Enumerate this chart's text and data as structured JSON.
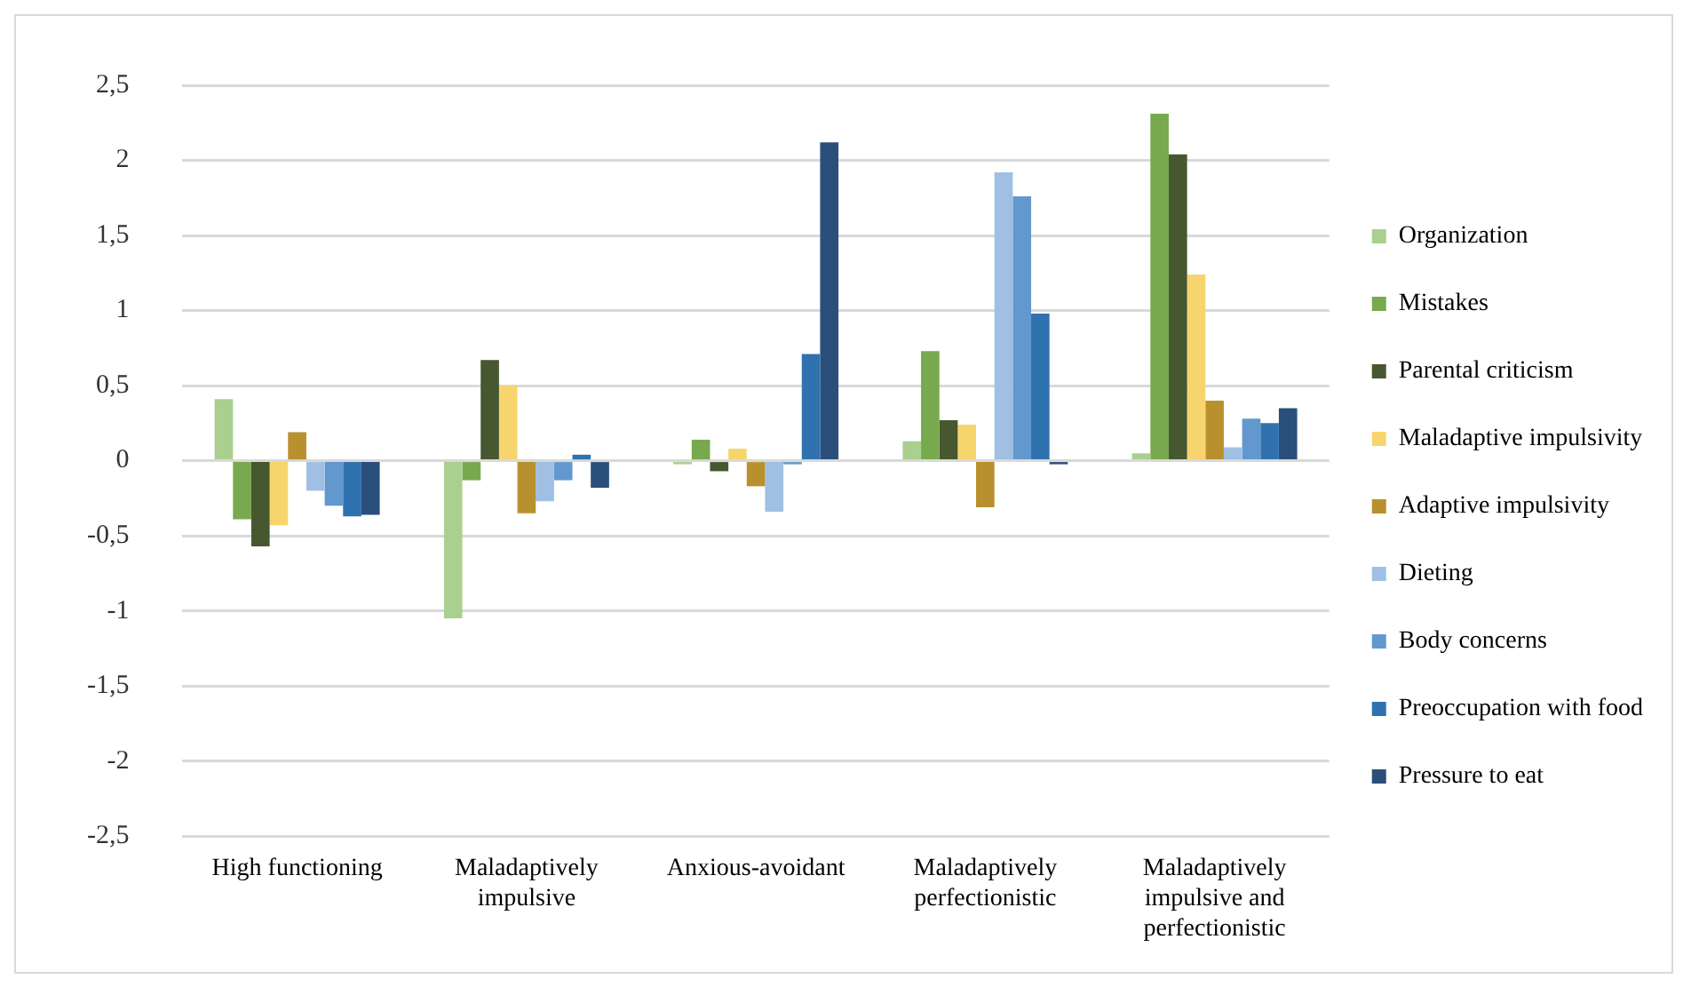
{
  "chart_data": {
    "type": "bar",
    "categories": [
      "High functioning",
      "Maladaptively impulsive",
      "Anxious-avoidant",
      "Maladaptively perfectionistic",
      "Maladaptively impulsive and perfectionistic"
    ],
    "series": [
      {
        "name": "Organization",
        "color": "#a9d08e",
        "values": [
          0.41,
          -1.05,
          -0.02,
          0.13,
          0.05
        ]
      },
      {
        "name": "Mistakes",
        "color": "#78a94e",
        "values": [
          -0.39,
          -0.13,
          0.14,
          0.73,
          2.31
        ]
      },
      {
        "name": "Parental criticism",
        "color": "#475730",
        "values": [
          -0.57,
          0.67,
          -0.07,
          0.27,
          2.04
        ]
      },
      {
        "name": "Maladaptive impulsivity",
        "color": "#f7d56e",
        "values": [
          -0.43,
          0.5,
          0.08,
          0.24,
          1.24
        ]
      },
      {
        "name": "Adaptive impulsivity",
        "color": "#b8902e",
        "values": [
          0.19,
          -0.35,
          -0.17,
          -0.31,
          0.4
        ]
      },
      {
        "name": "Dieting",
        "color": "#9fc0e3",
        "values": [
          -0.2,
          -0.27,
          -0.34,
          1.92,
          0.09
        ]
      },
      {
        "name": "Body concerns",
        "color": "#6298cd",
        "values": [
          -0.3,
          -0.13,
          -0.01,
          1.76,
          0.28
        ]
      },
      {
        "name": "Preoccupation with food",
        "color": "#3072b0",
        "values": [
          -0.37,
          0.04,
          0.71,
          0.98,
          0.25
        ]
      },
      {
        "name": "Pressure to eat",
        "color": "#2a4f7a",
        "values": [
          -0.36,
          -0.18,
          2.12,
          -0.02,
          0.35
        ]
      }
    ],
    "ylim": [
      -2.5,
      2.5
    ],
    "yticks": [
      {
        "value": -2.5,
        "label": "-2,5"
      },
      -2,
      {
        "value": -1.5,
        "label": "-1,5"
      },
      -1,
      {
        "value": -0.5,
        "label": "-0,5"
      },
      0,
      {
        "value": 0.5,
        "label": "0,5"
      },
      1,
      {
        "value": 1.5,
        "label": "1,5"
      },
      2,
      {
        "value": 2.5,
        "label": "2,5"
      }
    ],
    "grid": "y",
    "legend": "right"
  }
}
